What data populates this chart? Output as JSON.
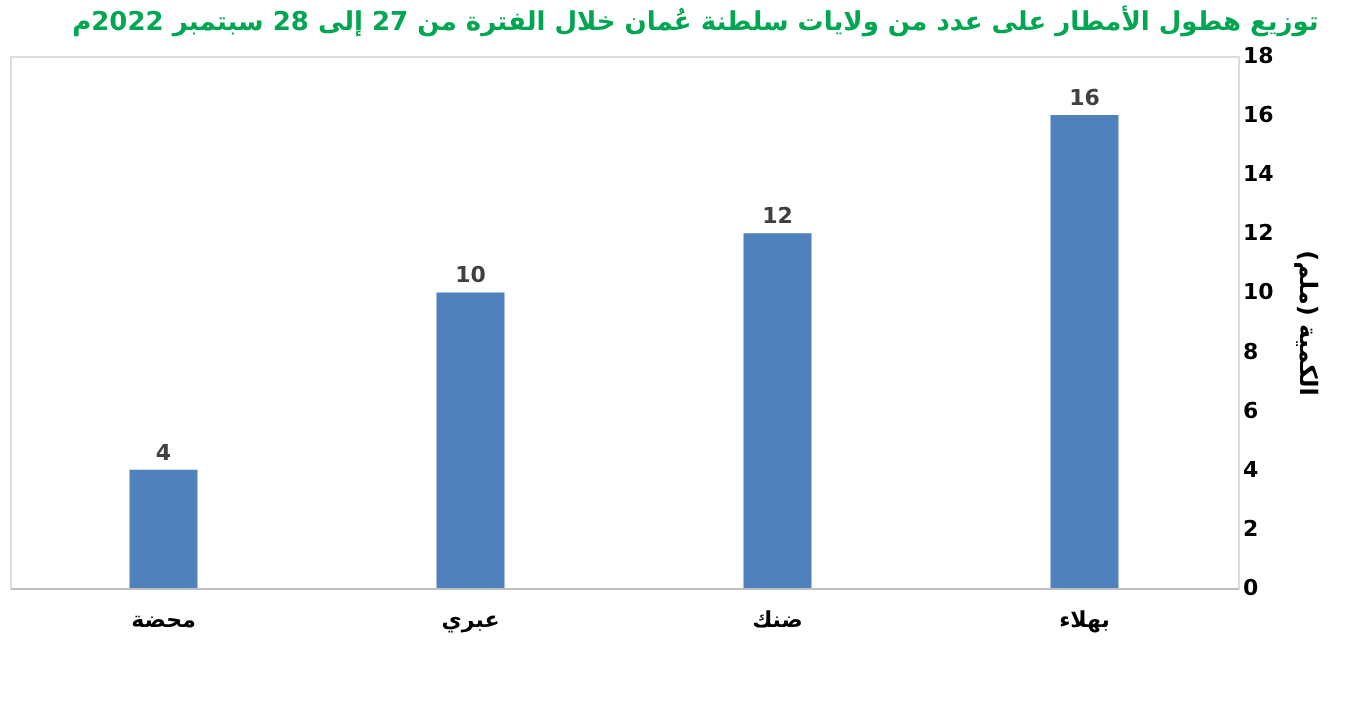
{
  "chart_data": {
    "type": "bar",
    "title": "توزيع هطول الأمطار على عدد من ولايات سلطنة عُمان خلال الفترة من 27 إلى 28 سبتمبر 2022م",
    "ylabel": "الكمية (ملم)",
    "categories": [
      "محضة",
      "عبري",
      "ضنك",
      "بهلاء"
    ],
    "values": [
      4,
      10,
      12,
      16
    ],
    "color": "#4f81bd",
    "ylim": [
      0,
      18
    ],
    "yticks": [
      0,
      2,
      4,
      6,
      8,
      10,
      12,
      14,
      16,
      18
    ],
    "grid": false,
    "data_labels": true
  }
}
